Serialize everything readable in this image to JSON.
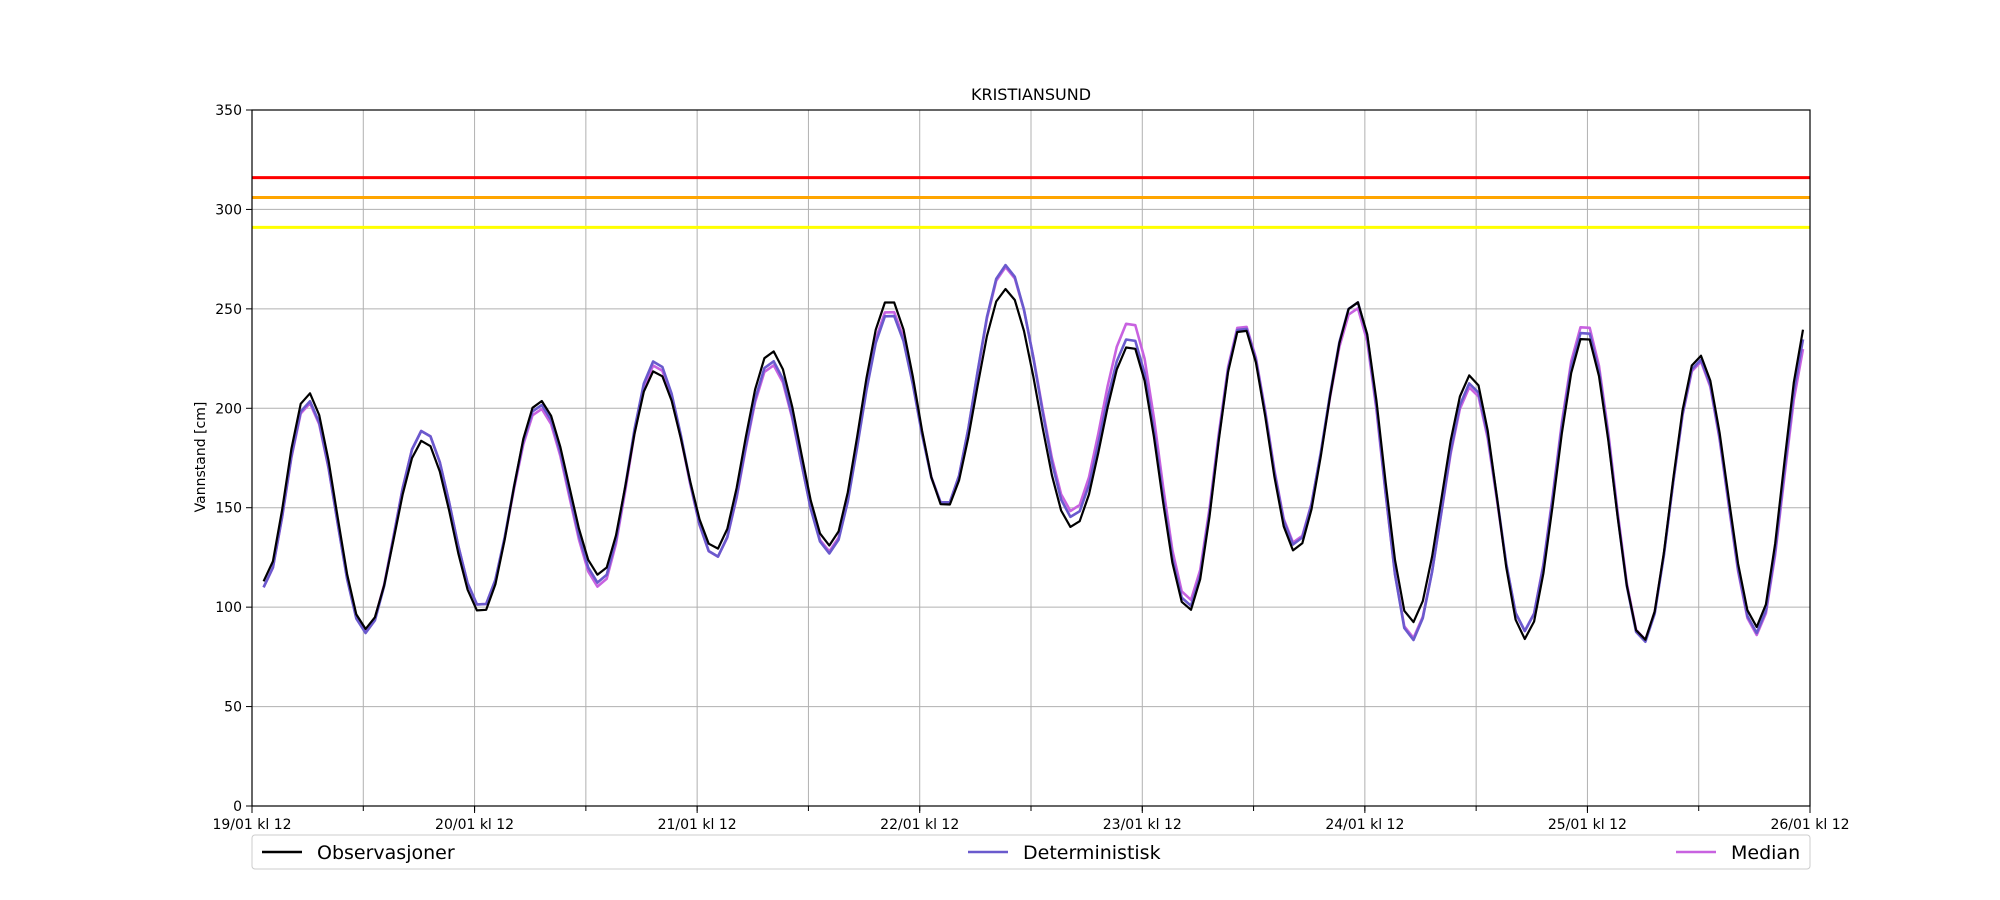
{
  "chart_data": {
    "type": "line",
    "title": "KRISTIANSUND",
    "xlabel": "",
    "ylabel": "Vannstand [cm]",
    "ylim": [
      0,
      350
    ],
    "yticks": [
      0,
      50,
      100,
      150,
      200,
      250,
      300,
      350
    ],
    "xlim_hours": [
      0,
      168
    ],
    "x_minor_ticks_hours": [
      0,
      12,
      24,
      36,
      48,
      60,
      72,
      84,
      96,
      108,
      120,
      132,
      144,
      156,
      168
    ],
    "x_tick_labels": [
      {
        "hour": 0,
        "label": "19/01 kl 12"
      },
      {
        "hour": 24,
        "label": "20/01 kl 12"
      },
      {
        "hour": 48,
        "label": "21/01 kl 12"
      },
      {
        "hour": 72,
        "label": "22/01 kl 12"
      },
      {
        "hour": 96,
        "label": "23/01 kl 12"
      },
      {
        "hour": 120,
        "label": "24/01 kl 12"
      },
      {
        "hour": 144,
        "label": "25/01 kl 12"
      },
      {
        "hour": 168,
        "label": "26/01 kl 12"
      }
    ],
    "grid": true,
    "legend_placement": "bottom",
    "thresholds": [
      {
        "value": 316,
        "color": "#ff0000"
      },
      {
        "value": 306,
        "color": "#ffa500"
      },
      {
        "value": 291,
        "color": "#ffff00"
      }
    ],
    "extrema": [
      {
        "hour": 1.25,
        "obs": 113,
        "det": 110,
        "med": 110
      },
      {
        "hour": 6,
        "obs": 208,
        "det": 204,
        "med": 203
      },
      {
        "hour": 12.25,
        "obs": 89,
        "det": 87,
        "med": 88
      },
      {
        "hour": 18.5,
        "obs": 184,
        "det": 189,
        "med": 189
      },
      {
        "hour": 24.75,
        "obs": 97,
        "det": 100,
        "med": 100
      },
      {
        "hour": 31,
        "obs": 204,
        "det": 202,
        "med": 200
      },
      {
        "hour": 37.5,
        "obs": 116,
        "det": 112,
        "med": 110
      },
      {
        "hour": 43.5,
        "obs": 219,
        "det": 224,
        "med": 222
      },
      {
        "hour": 50,
        "obs": 129,
        "det": 125,
        "med": 125
      },
      {
        "hour": 56,
        "obs": 229,
        "det": 224,
        "med": 222
      },
      {
        "hour": 62.25,
        "obs": 131,
        "det": 127,
        "med": 128
      },
      {
        "hour": 68.75,
        "obs": 255,
        "det": 248,
        "med": 250
      },
      {
        "hour": 74.75,
        "obs": 150,
        "det": 151,
        "med": 151
      },
      {
        "hour": 81.25,
        "obs": 260,
        "det": 272,
        "med": 271
      },
      {
        "hour": 88.5,
        "obs": 140,
        "det": 145,
        "med": 148
      },
      {
        "hour": 94.75,
        "obs": 232,
        "det": 236,
        "med": 244
      },
      {
        "hour": 101,
        "obs": 98,
        "det": 100,
        "med": 103
      },
      {
        "hour": 106.75,
        "obs": 241,
        "det": 242,
        "med": 243
      },
      {
        "hour": 112.5,
        "obs": 128,
        "det": 131,
        "med": 132
      },
      {
        "hour": 119,
        "obs": 254,
        "det": 254,
        "med": 251
      },
      {
        "hour": 125,
        "obs": 92,
        "det": 83,
        "med": 84
      },
      {
        "hour": 131.5,
        "obs": 217,
        "det": 213,
        "med": 211
      },
      {
        "hour": 137.25,
        "obs": 84,
        "det": 88,
        "med": 88
      },
      {
        "hour": 143.75,
        "obs": 237,
        "det": 240,
        "med": 243
      },
      {
        "hour": 150,
        "obs": 83,
        "det": 82,
        "med": 83
      },
      {
        "hour": 156,
        "obs": 227,
        "det": 225,
        "med": 224
      },
      {
        "hour": 162.25,
        "obs": 90,
        "det": 87,
        "med": 86
      },
      {
        "hour": 168,
        "obs": 246,
        "det": 241,
        "med": 236
      }
    ],
    "series": [
      {
        "name": "Observasjoner",
        "key": "obs",
        "color": "#000000"
      },
      {
        "name": "Deterministisk",
        "key": "det",
        "color": "#6a5acd"
      },
      {
        "name": "Median",
        "key": "med",
        "color": "#c862e0"
      }
    ]
  }
}
